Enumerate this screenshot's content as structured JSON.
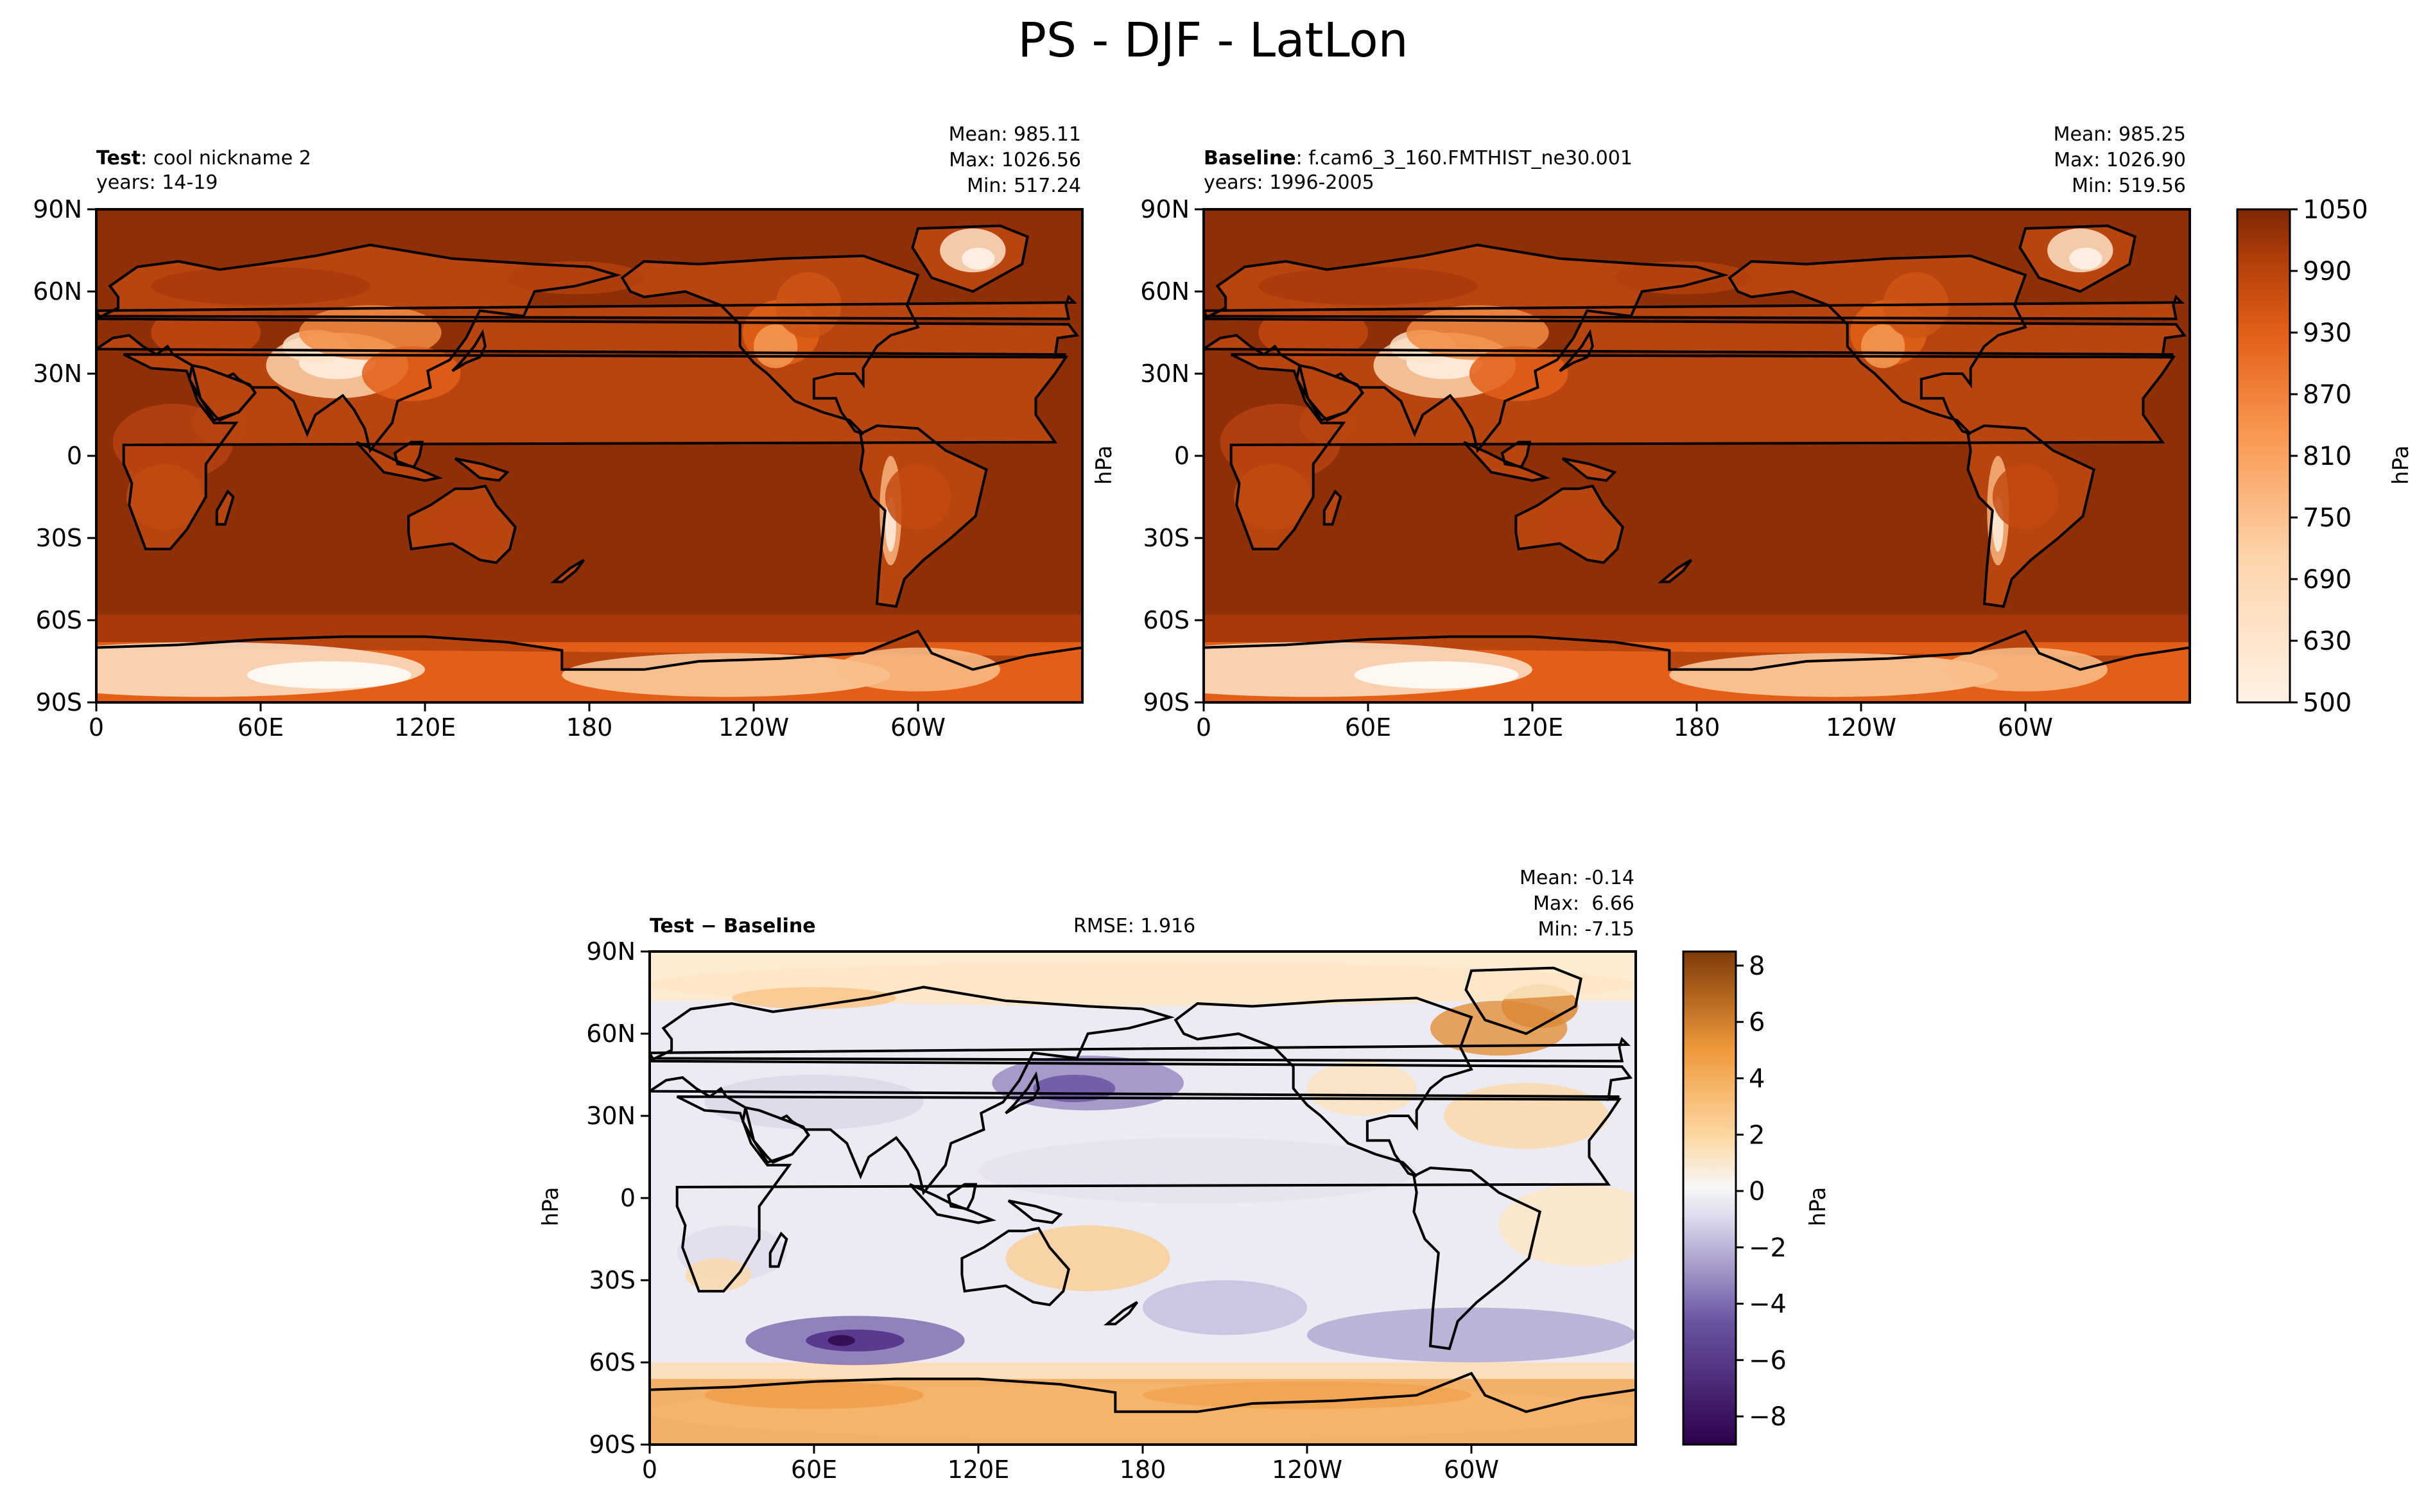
{
  "figure": {
    "title": "PS - DJF - LatLon"
  },
  "panels": {
    "test": {
      "label_bold": "Test",
      "label": "cool nickname 2",
      "years": "years: 14-19",
      "mean": "Mean: 985.11",
      "max": "Max: 1026.56",
      "min": "Min: 517.24"
    },
    "baseline": {
      "label_bold": "Baseline",
      "label": "f.cam6_3_160.FMTHIST_ne30.001",
      "years": "years: 1996-2005",
      "mean": "Mean: 985.25",
      "max": "Max: 1026.90",
      "min": "Min: 519.56",
      "ylabel": "hPa"
    },
    "diff": {
      "label_bold": "Test − Baseline",
      "rmse": "RMSE: 1.916",
      "mean": "Mean: -0.14",
      "max": "Max:  6.66",
      "min": "Min: -7.15",
      "ylabel": "hPa"
    }
  },
  "colorbars": {
    "abs": {
      "label": "hPa",
      "ticks": [
        "500",
        "630",
        "690",
        "750",
        "810",
        "870",
        "930",
        "990",
        "1050"
      ]
    },
    "diff": {
      "label": "hPa",
      "ticks": [
        "−8",
        "−6",
        "−4",
        "−2",
        "0",
        "2",
        "4",
        "6",
        "8"
      ]
    }
  },
  "chart_data": [
    {
      "type": "heatmap",
      "name_label": "Test",
      "x_ticks": [
        "0",
        "60E",
        "120E",
        "180",
        "120W",
        "60W"
      ],
      "y_ticks": [
        "90N",
        "60N",
        "30N",
        "0",
        "30S",
        "60S",
        "90S"
      ],
      "xlim": [
        0,
        360
      ],
      "ylim": [
        -90,
        90
      ],
      "value_range": [
        500,
        1050
      ],
      "levels": [
        500,
        550,
        575,
        600,
        630,
        660,
        690,
        720,
        750,
        780,
        810,
        840,
        870,
        900,
        930,
        960,
        990,
        1020,
        1050
      ],
      "colormap": "oranges",
      "colors": {
        "low": "#fef2e6",
        "mid": "#f2701d",
        "high": "#8a2e08"
      }
    },
    {
      "type": "heatmap",
      "name_label": "Baseline",
      "x_ticks": [
        "0",
        "60E",
        "120E",
        "180",
        "120W",
        "60W"
      ],
      "y_ticks": [
        "90N",
        "60N",
        "30N",
        "0",
        "30S",
        "60S",
        "90S"
      ],
      "xlim": [
        0,
        360
      ],
      "ylim": [
        -90,
        90
      ],
      "value_range": [
        500,
        1050
      ],
      "levels": [
        500,
        550,
        575,
        600,
        630,
        660,
        690,
        720,
        750,
        780,
        810,
        840,
        870,
        900,
        930,
        960,
        990,
        1020,
        1050
      ],
      "colormap": "oranges",
      "colors": {
        "low": "#fef2e6",
        "mid": "#f2701d",
        "high": "#8a2e08"
      }
    },
    {
      "type": "heatmap",
      "name_label": "Test − Baseline",
      "x_ticks": [
        "0",
        "60E",
        "120E",
        "180",
        "120W",
        "60W"
      ],
      "y_ticks": [
        "90N",
        "60N",
        "30N",
        "0",
        "30S",
        "60S",
        "90S"
      ],
      "xlim": [
        0,
        360
      ],
      "ylim": [
        -90,
        90
      ],
      "value_range": [
        -9,
        8.5
      ],
      "colormap": "PuOr_r",
      "colors": {
        "low": "#2d0a4a",
        "mid": "#f7f7f7",
        "high": "#7f3b08"
      }
    }
  ]
}
